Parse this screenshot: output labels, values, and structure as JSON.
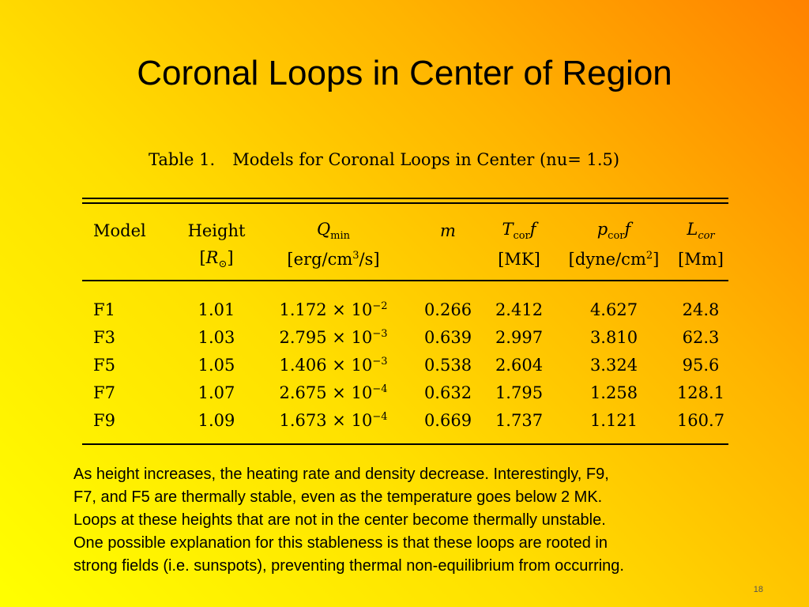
{
  "slide": {
    "title": "Coronal Loops in Center of Region",
    "number": "18"
  },
  "table": {
    "caption_label": "Table 1.",
    "caption_text": "Models for Coronal Loops in Center (nu= 1.5)",
    "headers": {
      "model": "Model",
      "height": "Height",
      "height_unit_open": "[",
      "height_unit_sym": "R",
      "height_unit_sub": "⊙",
      "height_unit_close": "]",
      "qmin_sym": "Q",
      "qmin_sub": "min",
      "qmin_unit": "[erg/cm",
      "qmin_unit_sup": "3",
      "qmin_unit_end": "/s]",
      "m": "m",
      "tcor_sym": "T",
      "tcor_sub": "cor",
      "tcor_f": "f",
      "tcor_unit": "[MK]",
      "pcor_sym": "p",
      "pcor_sub": "cor",
      "pcor_f": "f",
      "pcor_unit": "[dyne/cm",
      "pcor_unit_sup": "2",
      "pcor_unit_end": "]",
      "lcor_sym": "L",
      "lcor_sub": "cor",
      "lcor_unit": "[Mm]"
    },
    "rows": [
      {
        "model": "F1",
        "height": "1.01",
        "q_mant": "1.172 × 10",
        "q_exp": "−2",
        "m": "0.266",
        "tcor": "2.412",
        "pcor": "4.627",
        "lcor": "24.8"
      },
      {
        "model": "F3",
        "height": "1.03",
        "q_mant": "2.795 × 10",
        "q_exp": "−3",
        "m": "0.639",
        "tcor": "2.997",
        "pcor": "3.810",
        "lcor": "62.3"
      },
      {
        "model": "F5",
        "height": "1.05",
        "q_mant": "1.406 × 10",
        "q_exp": "−3",
        "m": "0.538",
        "tcor": "2.604",
        "pcor": "3.324",
        "lcor": "95.6"
      },
      {
        "model": "F7",
        "height": "1.07",
        "q_mant": "2.675 × 10",
        "q_exp": "−4",
        "m": "0.632",
        "tcor": "1.795",
        "pcor": "1.258",
        "lcor": "128.1"
      },
      {
        "model": "F9",
        "height": "1.09",
        "q_mant": "1.673 × 10",
        "q_exp": "−4",
        "m": "0.669",
        "tcor": "1.737",
        "pcor": "1.121",
        "lcor": "160.7"
      }
    ]
  },
  "body": {
    "lines": [
      "As height increases, the heating rate and density decrease. Interestingly, F9,",
      "F7, and F5 are thermally stable, even as the temperature goes below 2 MK.",
      "Loops at these heights that are not in the center become thermally unstable.",
      "One possible explanation for this stableness is that these loops are rooted in",
      "strong fields (i.e. sunspots), preventing thermal non-equilibrium from occurring."
    ]
  }
}
